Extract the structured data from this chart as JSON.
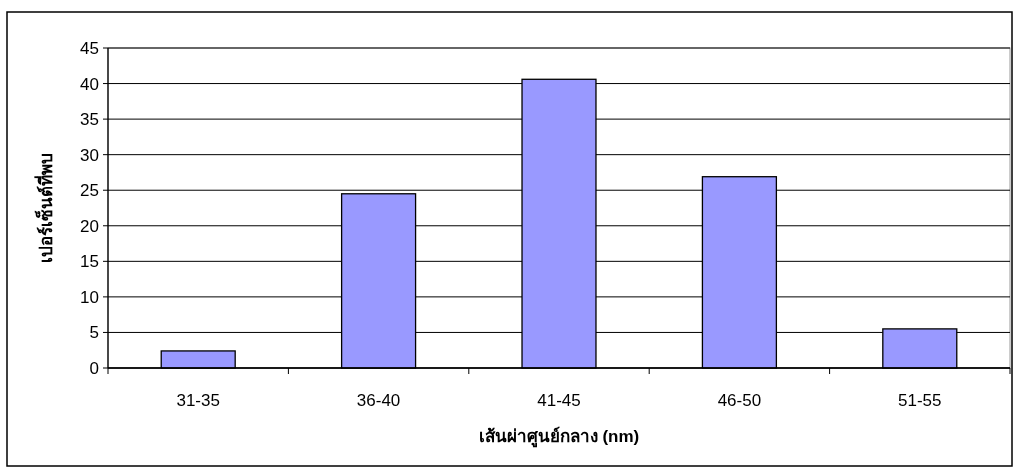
{
  "chart_data": {
    "type": "bar",
    "xlabel": "เส้นผ่าศูนย์กลาง (nm)",
    "ylabel": "เปอร์เซ็นต์ที่พบ",
    "categories": [
      "31-35",
      "36-40",
      "41-45",
      "46-50",
      "51-55"
    ],
    "values": [
      2.4,
      24.5,
      40.6,
      26.9,
      5.5
    ],
    "color": "#9999ff",
    "ylim": [
      0,
      45
    ],
    "yticks": [
      0,
      5,
      10,
      15,
      20,
      25,
      30,
      35,
      40,
      45
    ],
    "grid": "y"
  }
}
